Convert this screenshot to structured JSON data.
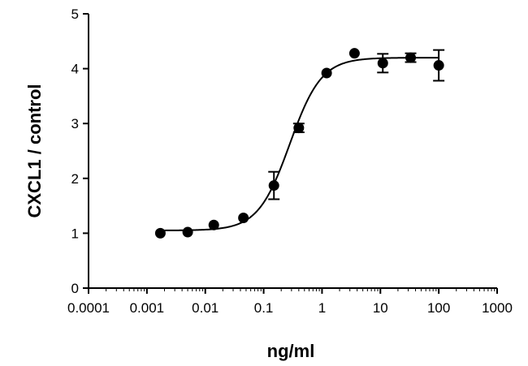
{
  "chart_data": {
    "type": "scatter",
    "xlabel": "ng/ml",
    "ylabel": "CXCL1  / control",
    "xscale": "log",
    "xlim": [
      0.0001,
      1000
    ],
    "ylim": [
      0,
      5
    ],
    "xticks": [
      {
        "value": 0.0001,
        "label": "0.0001"
      },
      {
        "value": 0.001,
        "label": "0.001"
      },
      {
        "value": 0.01,
        "label": "0.01"
      },
      {
        "value": 0.1,
        "label": "0.1"
      },
      {
        "value": 1,
        "label": "1"
      },
      {
        "value": 10,
        "label": "10"
      },
      {
        "value": 100,
        "label": "100"
      },
      {
        "value": 1000,
        "label": "1000"
      }
    ],
    "yticks": [
      {
        "value": 0,
        "label": "0"
      },
      {
        "value": 1,
        "label": "1"
      },
      {
        "value": 2,
        "label": "2"
      },
      {
        "value": 3,
        "label": "3"
      },
      {
        "value": 4,
        "label": "4"
      },
      {
        "value": 5,
        "label": "5"
      }
    ],
    "grid": false,
    "legend": "none",
    "points": [
      {
        "x": 0.0017,
        "y": 1.0,
        "err": 0
      },
      {
        "x": 0.005,
        "y": 1.02,
        "err": 0
      },
      {
        "x": 0.014,
        "y": 1.15,
        "err": 0
      },
      {
        "x": 0.045,
        "y": 1.28,
        "err": 0
      },
      {
        "x": 0.15,
        "y": 1.87,
        "err": 0.25
      },
      {
        "x": 0.4,
        "y": 2.92,
        "err": 0.08
      },
      {
        "x": 1.2,
        "y": 3.92,
        "err": 0
      },
      {
        "x": 3.6,
        "y": 4.28,
        "err": 0
      },
      {
        "x": 11,
        "y": 4.1,
        "err": 0.17
      },
      {
        "x": 33,
        "y": 4.2,
        "err": 0.08
      },
      {
        "x": 100,
        "y": 4.06,
        "err": 0.28
      }
    ],
    "fit_curve": {
      "model": "sigmoidal dose-response",
      "bottom": 1.05,
      "top": 4.2,
      "ec50": 0.28,
      "hill": 1.6
    },
    "colors": {
      "marker": "#000000",
      "line": "#000000",
      "axis": "#000000"
    }
  }
}
